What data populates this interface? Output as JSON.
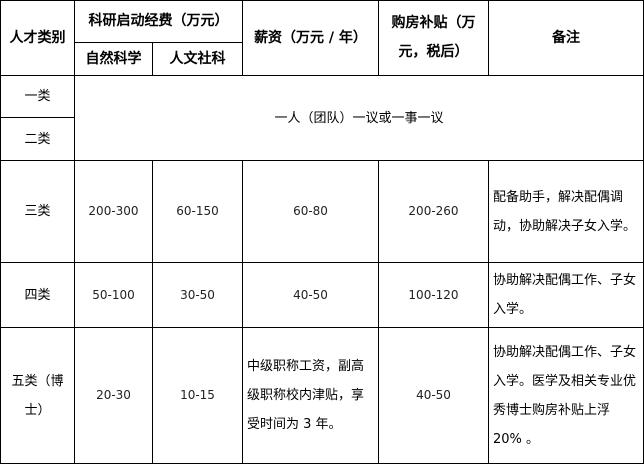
{
  "header": {
    "category": "人才类别",
    "research_funding": "科研启动经费（万元）",
    "natural_science": "自然科学",
    "humanities": "人文社科",
    "salary": "薪资（万元 / 年）",
    "housing": "购房补贴（万元，税后）",
    "notes": "备注"
  },
  "rows": [
    {
      "category": "一类"
    },
    {
      "category": "二类"
    },
    {
      "category": "三类",
      "natural": "200-300",
      "humanities": "60-150",
      "salary": "60-80",
      "housing": "200-260",
      "notes": "配备助手，解决配偶调动，协助解决子女入学。"
    },
    {
      "category": "四类",
      "natural": "50-100",
      "humanities": "30-50",
      "salary": "40-50",
      "housing": "100-120",
      "notes": "协助解决配偶工作、子女入学。"
    },
    {
      "category": "五类（博士）",
      "natural": "20-30",
      "humanities": "10-15",
      "salary": "中级职称工资，副高级职称校内津贴，享受时间为 3 年。",
      "housing": "40-50",
      "notes": "协助解决配偶工作、子女入学。医学及相关专业优秀博士购房补贴上浮 20% 。"
    }
  ],
  "merged_note": "一人（团队）一议或一事一议"
}
